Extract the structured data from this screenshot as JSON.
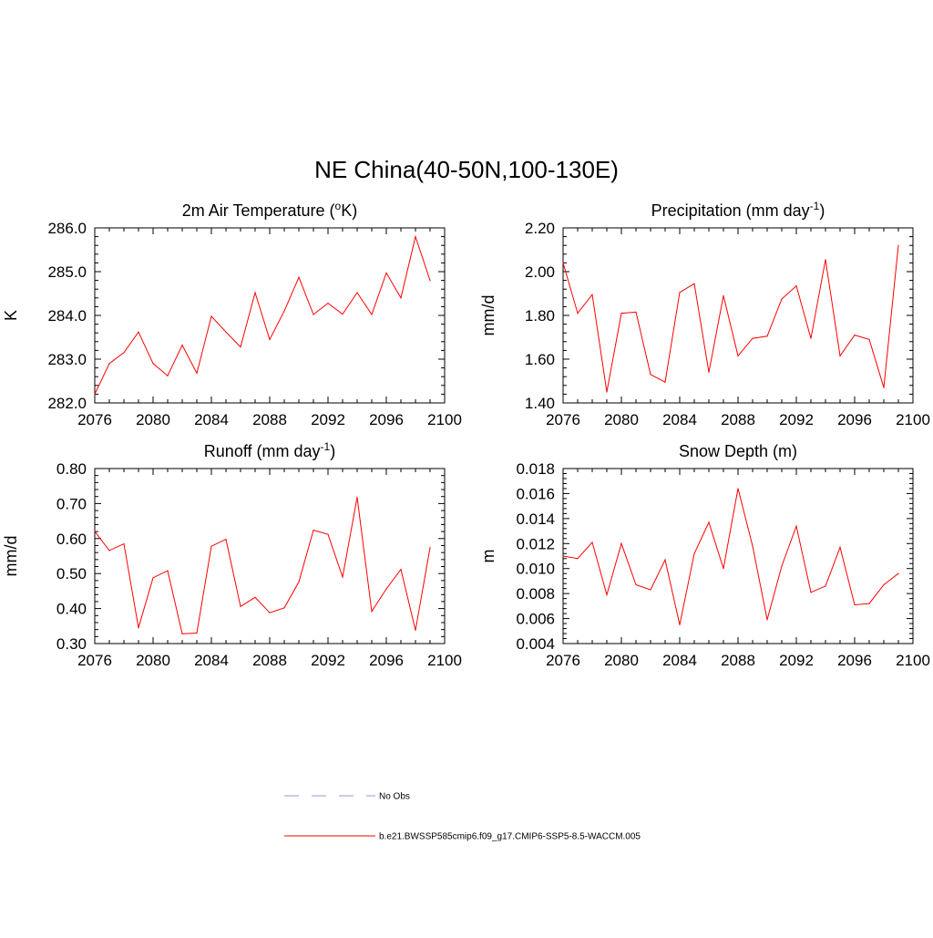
{
  "title": "NE China(40-50N,100-130E)",
  "legend": [
    {
      "label": "No Obs",
      "color": "#9999dd",
      "dash": true
    },
    {
      "label": "b.e21.BWSSP585cmip6.f09_g17.CMIP6-SSP5-8.5-WACCM.005",
      "color": "#ff0000",
      "dash": false
    }
  ],
  "chart_data": [
    {
      "type": "line",
      "title": "2m Air Temperature (",
      "title_sup": "o",
      "title_suffix": "K)",
      "ylabel": "K",
      "xlim": [
        2076,
        2100
      ],
      "ylim": [
        282.0,
        286.0
      ],
      "xticks": [
        "2076",
        "2080",
        "2084",
        "2088",
        "2092",
        "2096",
        "2100"
      ],
      "yticks": [
        "282.0",
        "283.0",
        "284.0",
        "285.0",
        "286.0"
      ],
      "series": [
        {
          "color": "#ff0000",
          "x": [
            2076,
            2077,
            2078,
            2079,
            2080,
            2081,
            2082,
            2083,
            2084,
            2085,
            2086,
            2087,
            2088,
            2089,
            2090,
            2091,
            2092,
            2093,
            2094,
            2095,
            2096,
            2097,
            2098,
            2099
          ],
          "values": [
            282.2,
            282.9,
            283.15,
            283.62,
            282.9,
            282.62,
            283.32,
            282.68,
            283.98,
            283.62,
            283.28,
            284.52,
            283.45,
            284.1,
            284.87,
            284.02,
            284.28,
            284.03,
            284.52,
            284.02,
            284.97,
            284.4,
            285.8,
            284.8
          ]
        }
      ]
    },
    {
      "type": "line",
      "title": "Precipitation (mm day",
      "title_sup": "-1",
      "title_suffix": ")",
      "ylabel": "mm/d",
      "xlim": [
        2076,
        2100
      ],
      "ylim": [
        1.4,
        2.2
      ],
      "xticks": [
        "2076",
        "2080",
        "2084",
        "2088",
        "2092",
        "2096",
        "2100"
      ],
      "yticks": [
        "1.40",
        "1.60",
        "1.80",
        "2.00",
        "2.20"
      ],
      "series": [
        {
          "color": "#ff0000",
          "x": [
            2076,
            2077,
            2078,
            2079,
            2080,
            2081,
            2082,
            2083,
            2084,
            2085,
            2086,
            2087,
            2088,
            2089,
            2090,
            2091,
            2092,
            2093,
            2094,
            2095,
            2096,
            2097,
            2098,
            2099
          ],
          "values": [
            2.04,
            1.81,
            1.895,
            1.45,
            1.81,
            1.815,
            1.53,
            1.495,
            1.905,
            1.945,
            1.54,
            1.89,
            1.615,
            1.695,
            1.705,
            1.875,
            1.935,
            1.695,
            2.055,
            1.615,
            1.71,
            1.69,
            1.47,
            2.12
          ]
        }
      ]
    },
    {
      "type": "line",
      "title": "Runoff (mm day",
      "title_sup": "-1",
      "title_suffix": ")",
      "ylabel": "mm/d",
      "xlim": [
        2076,
        2100
      ],
      "ylim": [
        0.3,
        0.8
      ],
      "xticks": [
        "2076",
        "2080",
        "2084",
        "2088",
        "2092",
        "2096",
        "2100"
      ],
      "yticks": [
        "0.30",
        "0.40",
        "0.50",
        "0.60",
        "0.70",
        "0.80"
      ],
      "series": [
        {
          "color": "#ff0000",
          "x": [
            2076,
            2077,
            2078,
            2079,
            2080,
            2081,
            2082,
            2083,
            2084,
            2085,
            2086,
            2087,
            2088,
            2089,
            2090,
            2091,
            2092,
            2093,
            2094,
            2095,
            2096,
            2097,
            2098,
            2099
          ],
          "values": [
            0.62,
            0.566,
            0.585,
            0.345,
            0.488,
            0.508,
            0.328,
            0.33,
            0.578,
            0.598,
            0.406,
            0.432,
            0.388,
            0.402,
            0.476,
            0.624,
            0.612,
            0.49,
            0.718,
            0.392,
            0.456,
            0.512,
            0.338,
            0.574
          ]
        }
      ]
    },
    {
      "type": "line",
      "title": "Snow Depth (m)",
      "title_sup": "",
      "title_suffix": "",
      "ylabel": "m",
      "xlim": [
        2076,
        2100
      ],
      "ylim": [
        0.004,
        0.018
      ],
      "xticks": [
        "2076",
        "2080",
        "2084",
        "2088",
        "2092",
        "2096",
        "2100"
      ],
      "yticks": [
        "0.004",
        "0.006",
        "0.008",
        "0.010",
        "0.012",
        "0.014",
        "0.016",
        "0.018"
      ],
      "series": [
        {
          "color": "#ff0000",
          "x": [
            2076,
            2077,
            2078,
            2079,
            2080,
            2081,
            2082,
            2083,
            2084,
            2085,
            2086,
            2087,
            2088,
            2089,
            2090,
            2091,
            2092,
            2093,
            2094,
            2095,
            2096,
            2097,
            2098,
            2099
          ],
          "values": [
            0.011,
            0.0108,
            0.0121,
            0.0079,
            0.012,
            0.0087,
            0.0083,
            0.0107,
            0.0055,
            0.0112,
            0.0137,
            0.01,
            0.0164,
            0.0118,
            0.0059,
            0.0102,
            0.0134,
            0.0081,
            0.0086,
            0.0117,
            0.0071,
            0.0072,
            0.0087,
            0.0096
          ]
        }
      ]
    }
  ]
}
